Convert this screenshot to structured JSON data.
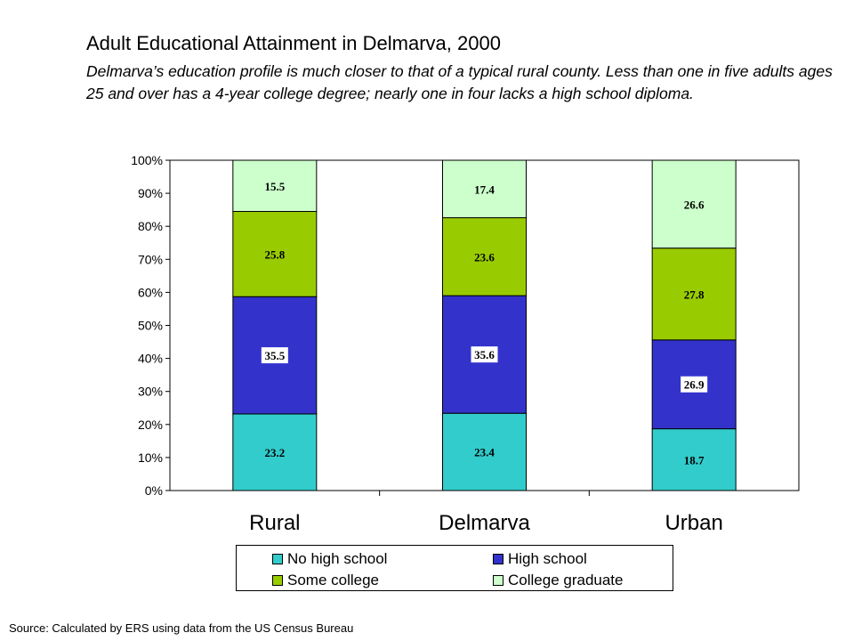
{
  "title": "Adult Educational Attainment in Delmarva, 2000",
  "subtitle": "Delmarva’s education profile is much closer to that of a typical rural county.  Less than one in five adults ages 25 and over has a 4-year college degree; nearly one in four lacks a high school diploma.",
  "source": "Source:  Calculated by ERS using data from the US Census Bureau",
  "chart_data": {
    "type": "bar",
    "stacked": true,
    "categories": [
      "Rural",
      "Delmarva",
      "Urban"
    ],
    "series": [
      {
        "name": "No high school",
        "color": "#33cccc",
        "values": [
          23.2,
          23.4,
          18.7
        ]
      },
      {
        "name": "High school",
        "color": "#3333cc",
        "values": [
          35.5,
          35.6,
          26.9
        ]
      },
      {
        "name": "Some college",
        "color": "#99cc00",
        "values": [
          25.8,
          23.6,
          27.8
        ]
      },
      {
        "name": "College graduate",
        "color": "#ccffcc",
        "values": [
          15.5,
          17.4,
          26.6
        ]
      }
    ],
    "ylim": [
      0,
      100
    ],
    "yticks": [
      "0%",
      "10%",
      "20%",
      "30%",
      "40%",
      "50%",
      "60%",
      "70%",
      "80%",
      "90%",
      "100%"
    ],
    "grid": false,
    "legend": "bottom"
  }
}
